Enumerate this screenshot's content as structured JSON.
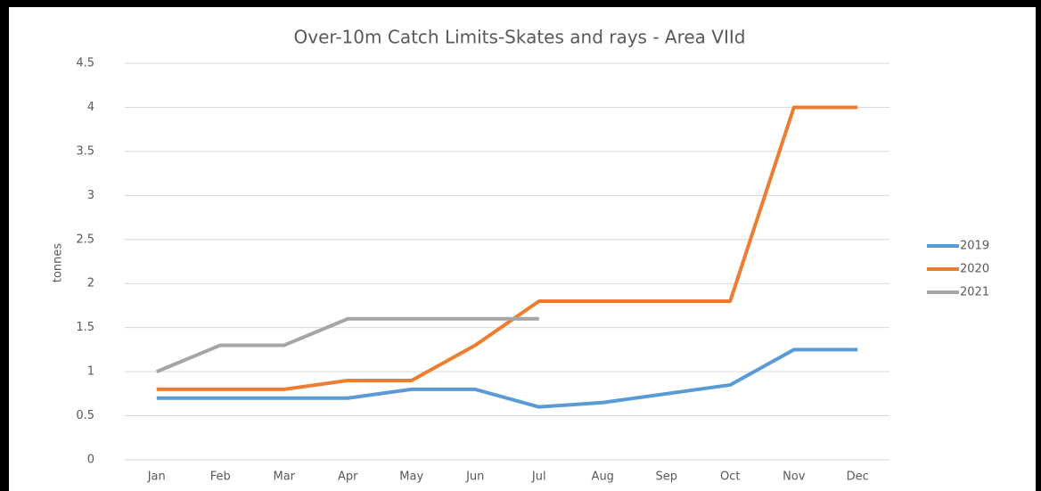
{
  "chart_data": {
    "type": "line",
    "title": "Over-10m Catch Limits-Skates and rays - Area VIId",
    "y_label": "tonnes",
    "categories": [
      "Jan",
      "Feb",
      "Mar",
      "Apr",
      "May",
      "Jun",
      "Jul",
      "Aug",
      "Sep",
      "Oct",
      "Nov",
      "Dec"
    ],
    "series": [
      {
        "name": "2019",
        "color": "#5b9bd5",
        "values": [
          0.7,
          0.7,
          0.7,
          0.7,
          0.8,
          0.8,
          0.6,
          0.65,
          0.75,
          0.85,
          1.25,
          1.25
        ]
      },
      {
        "name": "2020",
        "color": "#ed7d31",
        "values": [
          0.8,
          0.8,
          0.8,
          0.9,
          0.9,
          1.3,
          1.8,
          1.8,
          1.8,
          1.8,
          4,
          4
        ]
      },
      {
        "name": "2021",
        "color": "#a5a5a5",
        "values": [
          1,
          1.3,
          1.3,
          1.6,
          1.6,
          1.6,
          1.6,
          null,
          null,
          null,
          null,
          null
        ]
      }
    ],
    "ylim": [
      0,
      4.5
    ],
    "yticks": [
      0,
      0.5,
      1,
      1.5,
      2,
      2.5,
      3,
      3.5,
      4,
      4.5
    ],
    "grid": true,
    "legend": "right"
  }
}
